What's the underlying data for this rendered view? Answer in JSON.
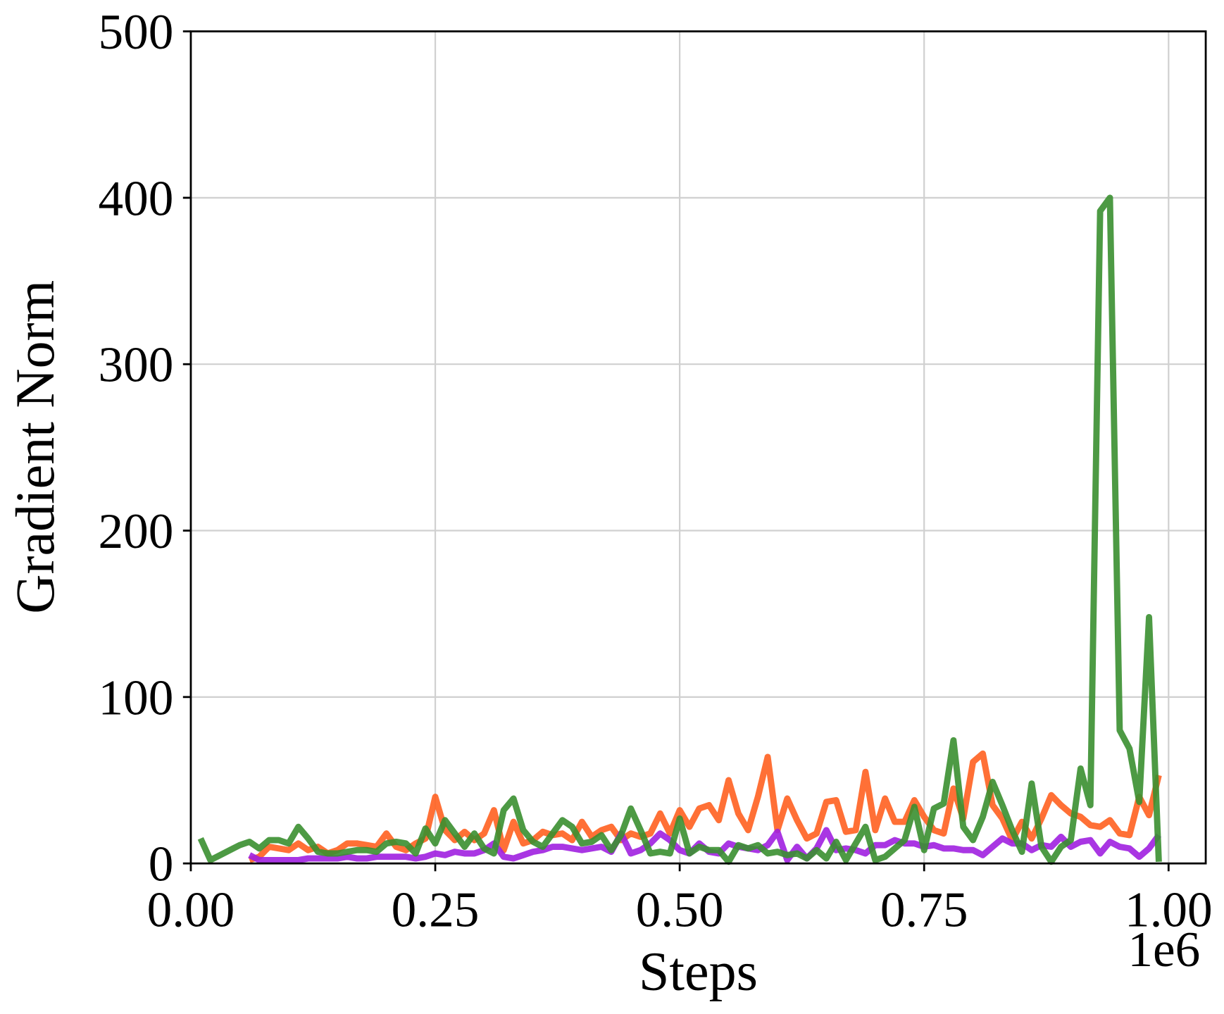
{
  "chart_data": {
    "type": "line",
    "xlabel": "Steps",
    "ylabel": "Gradient Norm",
    "x_offset_label": "1e6",
    "xlim": [
      0,
      1.038
    ],
    "ylim": [
      0,
      500
    ],
    "xticks": [
      {
        "value": 0,
        "label": "0.00"
      },
      {
        "value": 0.25,
        "label": "0.25"
      },
      {
        "value": 0.5,
        "label": "0.50"
      },
      {
        "value": 0.75,
        "label": "0.75"
      },
      {
        "value": 1,
        "label": "1.00"
      }
    ],
    "yticks": [
      0,
      100,
      200,
      300,
      400,
      500
    ],
    "grid": true,
    "series": [
      {
        "color": "#ff6020",
        "x": [
          0.06,
          0.07,
          0.08,
          0.09,
          0.1,
          0.11,
          0.12,
          0.13,
          0.14,
          0.15,
          0.16,
          0.17,
          0.18,
          0.19,
          0.2,
          0.21,
          0.22,
          0.23,
          0.24,
          0.25,
          0.26,
          0.27,
          0.28,
          0.29,
          0.3,
          0.31,
          0.32,
          0.33,
          0.34,
          0.35,
          0.36,
          0.37,
          0.38,
          0.39,
          0.4,
          0.41,
          0.42,
          0.43,
          0.44,
          0.45,
          0.46,
          0.47,
          0.48,
          0.49,
          0.5,
          0.51,
          0.52,
          0.53,
          0.54,
          0.55,
          0.56,
          0.57,
          0.58,
          0.59,
          0.6,
          0.61,
          0.62,
          0.63,
          0.64,
          0.65,
          0.66,
          0.67,
          0.68,
          0.69,
          0.7,
          0.71,
          0.72,
          0.73,
          0.74,
          0.75,
          0.76,
          0.77,
          0.78,
          0.79,
          0.8,
          0.81,
          0.82,
          0.83,
          0.84,
          0.85,
          0.86,
          0.87,
          0.88,
          0.89,
          0.9,
          0.91,
          0.92,
          0.93,
          0.94,
          0.95,
          0.96,
          0.97,
          0.98,
          0.99
        ],
        "values": [
          2,
          4,
          10,
          9,
          8,
          12,
          8,
          10,
          6,
          8,
          12,
          12,
          11,
          10,
          18,
          10,
          8,
          12,
          15,
          40,
          20,
          14,
          19,
          14,
          18,
          32,
          8,
          25,
          12,
          14,
          19,
          17,
          18,
          14,
          25,
          16,
          20,
          22,
          14,
          18,
          16,
          18,
          30,
          18,
          32,
          22,
          33,
          35,
          26,
          50,
          30,
          20,
          40,
          64,
          20,
          39,
          26,
          15,
          18,
          37,
          38,
          19,
          20,
          55,
          20,
          39,
          25,
          25,
          38,
          28,
          20,
          18,
          45,
          27,
          61,
          66,
          35,
          27,
          14,
          25,
          15,
          27,
          41,
          35,
          30,
          28,
          23,
          22,
          26,
          18,
          17,
          40,
          29,
          53
        ]
      },
      {
        "color": "#a020e0",
        "x": [
          0.06,
          0.07,
          0.08,
          0.09,
          0.1,
          0.11,
          0.12,
          0.13,
          0.14,
          0.15,
          0.16,
          0.17,
          0.18,
          0.19,
          0.2,
          0.21,
          0.22,
          0.23,
          0.24,
          0.25,
          0.26,
          0.27,
          0.28,
          0.29,
          0.3,
          0.31,
          0.32,
          0.33,
          0.34,
          0.35,
          0.36,
          0.37,
          0.38,
          0.39,
          0.4,
          0.41,
          0.42,
          0.43,
          0.44,
          0.45,
          0.46,
          0.47,
          0.48,
          0.49,
          0.5,
          0.51,
          0.52,
          0.53,
          0.54,
          0.55,
          0.56,
          0.57,
          0.58,
          0.59,
          0.6,
          0.61,
          0.62,
          0.63,
          0.64,
          0.65,
          0.66,
          0.67,
          0.68,
          0.69,
          0.7,
          0.71,
          0.72,
          0.73,
          0.74,
          0.75,
          0.76,
          0.77,
          0.78,
          0.79,
          0.8,
          0.81,
          0.82,
          0.83,
          0.84,
          0.85,
          0.86,
          0.87,
          0.88,
          0.89,
          0.9,
          0.91,
          0.92,
          0.93,
          0.94,
          0.95,
          0.96,
          0.97,
          0.98,
          0.99
        ],
        "values": [
          5,
          2,
          2,
          2,
          2,
          2,
          3,
          3,
          3,
          3,
          4,
          3,
          3,
          4,
          4,
          4,
          4,
          3,
          4,
          6,
          5,
          7,
          6,
          6,
          8,
          12,
          4,
          3,
          5,
          7,
          8,
          10,
          10,
          9,
          8,
          9,
          10,
          7,
          18,
          6,
          8,
          12,
          18,
          14,
          8,
          6,
          12,
          7,
          6,
          12,
          10,
          9,
          8,
          11,
          19,
          2,
          10,
          3,
          9,
          20,
          8,
          9,
          8,
          6,
          11,
          11,
          14,
          12,
          12,
          10,
          11,
          9,
          9,
          8,
          8,
          5,
          10,
          15,
          12,
          12,
          8,
          11,
          10,
          16,
          10,
          13,
          14,
          6,
          13,
          10,
          9,
          4,
          9,
          17
        ]
      },
      {
        "color": "#3a8f30",
        "x": [
          0.01,
          0.02,
          0.03,
          0.04,
          0.05,
          0.06,
          0.07,
          0.08,
          0.09,
          0.1,
          0.11,
          0.12,
          0.13,
          0.14,
          0.15,
          0.16,
          0.17,
          0.18,
          0.19,
          0.2,
          0.21,
          0.22,
          0.23,
          0.24,
          0.25,
          0.26,
          0.27,
          0.28,
          0.29,
          0.3,
          0.31,
          0.32,
          0.33,
          0.34,
          0.35,
          0.36,
          0.37,
          0.38,
          0.39,
          0.4,
          0.41,
          0.42,
          0.43,
          0.44,
          0.45,
          0.46,
          0.47,
          0.48,
          0.49,
          0.5,
          0.51,
          0.52,
          0.53,
          0.54,
          0.55,
          0.56,
          0.57,
          0.58,
          0.59,
          0.6,
          0.61,
          0.62,
          0.63,
          0.64,
          0.65,
          0.66,
          0.67,
          0.68,
          0.69,
          0.7,
          0.71,
          0.72,
          0.73,
          0.74,
          0.75,
          0.76,
          0.77,
          0.78,
          0.79,
          0.8,
          0.81,
          0.82,
          0.83,
          0.84,
          0.85,
          0.86,
          0.87,
          0.88,
          0.89,
          0.9,
          0.91,
          0.92,
          0.93,
          0.94,
          0.95,
          0.96,
          0.97,
          0.98,
          0.99
        ],
        "values": [
          15,
          2,
          5,
          8,
          11,
          13,
          9,
          14,
          14,
          12,
          22,
          15,
          7,
          6,
          6,
          7,
          8,
          8,
          7,
          12,
          13,
          12,
          6,
          21,
          12,
          26,
          18,
          10,
          18,
          9,
          6,
          32,
          39,
          20,
          13,
          10,
          18,
          26,
          22,
          12,
          13,
          17,
          8,
          17,
          33,
          20,
          6,
          7,
          6,
          27,
          6,
          10,
          8,
          8,
          1,
          11,
          9,
          11,
          6,
          7,
          5,
          6,
          3,
          8,
          3,
          13,
          2,
          12,
          22,
          2,
          4,
          9,
          14,
          34,
          8,
          33,
          36,
          74,
          22,
          14,
          28,
          49,
          35,
          20,
          7,
          48,
          10,
          1,
          10,
          14,
          57,
          35,
          392,
          400,
          80,
          69,
          37,
          148,
          1
        ]
      }
    ]
  }
}
